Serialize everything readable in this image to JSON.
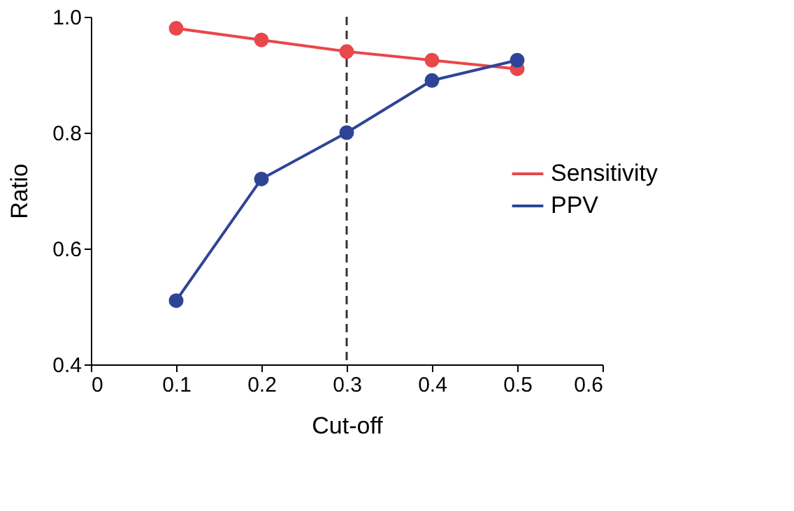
{
  "chart_data": {
    "type": "line",
    "xlabel": "Cut-off",
    "ylabel": "Ratio",
    "x": [
      0.1,
      0.2,
      0.3,
      0.4,
      0.5
    ],
    "series": [
      {
        "name": "Sensitivity",
        "color": "#e8474c",
        "values": [
          0.98,
          0.96,
          0.94,
          0.925,
          0.91
        ]
      },
      {
        "name": "PPV",
        "color": "#2e4597",
        "values": [
          0.51,
          0.72,
          0.8,
          0.89,
          0.925
        ]
      }
    ],
    "xlim": [
      0,
      0.6
    ],
    "xticks": [
      0,
      0.1,
      0.2,
      0.3,
      0.4,
      0.5,
      0.6
    ],
    "ylim": [
      0.4,
      1.0
    ],
    "yticks": [
      {
        "value": 0.4,
        "label": "0.4"
      },
      {
        "value": 0.6,
        "label": "0.6"
      },
      {
        "value": 0.8,
        "label": "0.8"
      },
      {
        "value": 1.0,
        "label": "1.0"
      }
    ],
    "ref_lines": [
      {
        "axis": "x",
        "value": 0.3,
        "label": null,
        "color": "#333333",
        "line_style": "dashed"
      }
    ],
    "marker": "circle",
    "line_style": "solid",
    "grid": false,
    "legend": "right"
  }
}
